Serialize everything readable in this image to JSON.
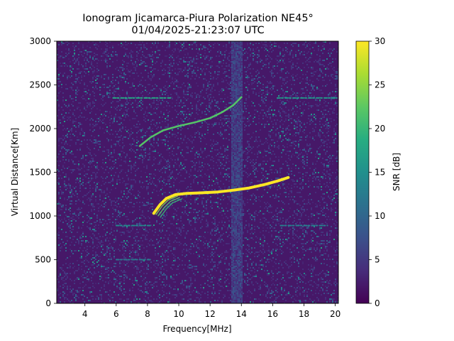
{
  "figure": {
    "title_line1": "Ionogram Jicamarca-Piura Polarization NE45°",
    "title_line2": "01/04/2025-21:23:07 UTC",
    "background": "#ffffff"
  },
  "chart_data": {
    "type": "heatmap",
    "title": "Ionogram Jicamarca-Piura Polarization NE45° 01/04/2025-21:23:07 UTC",
    "xlabel": "Frequency[MHz]",
    "ylabel": "Virtual Distance[Km]",
    "xlim": [
      2.2,
      20.2
    ],
    "ylim": [
      0,
      3000
    ],
    "xticks": [
      4,
      6,
      8,
      10,
      12,
      14,
      16,
      18,
      20
    ],
    "yticks": [
      0,
      500,
      1000,
      1500,
      2000,
      2500,
      3000
    ],
    "grid": false,
    "colormap": "viridis",
    "colorbar": {
      "label": "SNR [dB]",
      "range": [
        0,
        30
      ],
      "ticks": [
        0,
        5,
        10,
        15,
        20,
        25,
        30
      ],
      "stops": [
        "#440154",
        "#472c7a",
        "#3b518b",
        "#2c718e",
        "#21908d",
        "#27ad81",
        "#5cc863",
        "#aadc32",
        "#fde725"
      ]
    },
    "traces": [
      {
        "name": "1-hop F-layer trace (strong)",
        "snr_db": 30,
        "points": [
          [
            8.4,
            1030
          ],
          [
            8.8,
            1130
          ],
          [
            9.2,
            1200
          ],
          [
            9.8,
            1245
          ],
          [
            10.5,
            1258
          ],
          [
            11.5,
            1265
          ],
          [
            12.5,
            1275
          ],
          [
            13.5,
            1295
          ],
          [
            14.5,
            1320
          ],
          [
            15.5,
            1360
          ],
          [
            16.3,
            1400
          ],
          [
            17.0,
            1440
          ]
        ]
      },
      {
        "name": "2-hop F-layer trace",
        "snr_db": 22,
        "points": [
          [
            7.5,
            1800
          ],
          [
            8.2,
            1900
          ],
          [
            9.0,
            1980
          ],
          [
            10.0,
            2030
          ],
          [
            11.0,
            2070
          ],
          [
            12.0,
            2120
          ],
          [
            12.8,
            2190
          ],
          [
            13.5,
            2270
          ],
          [
            14.0,
            2360
          ]
        ]
      },
      {
        "name": "Interference line ~2350 km (low freq)",
        "snr_db": 18,
        "points": [
          [
            5.8,
            2350
          ],
          [
            9.5,
            2350
          ]
        ]
      },
      {
        "name": "Interference line ~2350 km (high freq)",
        "snr_db": 16,
        "points": [
          [
            16.3,
            2350
          ],
          [
            20.1,
            2350
          ]
        ]
      },
      {
        "name": "Interference line ~890 km (low freq)",
        "snr_db": 14,
        "points": [
          [
            6.0,
            890
          ],
          [
            8.2,
            890
          ]
        ]
      },
      {
        "name": "Interference line ~890 km (high freq)",
        "snr_db": 13,
        "points": [
          [
            16.5,
            890
          ],
          [
            19.5,
            890
          ]
        ]
      },
      {
        "name": "Interference line ~500 km",
        "snr_db": 12,
        "points": [
          [
            6.0,
            500
          ],
          [
            8.2,
            500
          ]
        ]
      }
    ],
    "noise_band": {
      "freq_range": [
        13.3,
        14.0
      ],
      "snr_db": 5
    },
    "noise_floor_db": 2
  }
}
